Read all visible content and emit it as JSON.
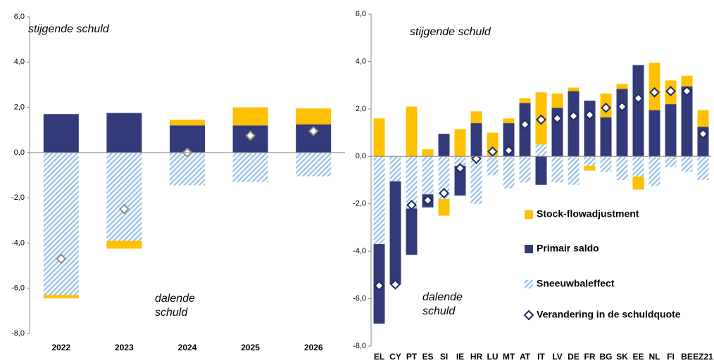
{
  "chart_data": [
    {
      "type": "bar",
      "stacked": true,
      "categories": [
        "2022",
        "2023",
        "2024",
        "2025",
        "2026"
      ],
      "series": [
        {
          "color": "#FFC000",
          "values": [
            -0.15,
            -0.35,
            0.25,
            0.8,
            0.7
          ]
        },
        {
          "color": "#333A7A",
          "values": [
            1.7,
            1.75,
            1.2,
            1.2,
            1.25
          ]
        },
        {
          "color": "#9DC3E6",
          "hatch": true,
          "values": [
            -6.3,
            -3.9,
            -1.45,
            -1.3,
            -1.05
          ]
        },
        {
          "type": "marker",
          "color": "#8C8C8C",
          "values": [
            -4.7,
            -2.5,
            0.0,
            0.75,
            0.95
          ]
        }
      ],
      "ylim": [
        -8,
        6
      ],
      "yticks": [
        {
          "value": -8,
          "label": "-8,0"
        },
        {
          "value": -6,
          "label": "-6,0"
        },
        {
          "value": -4,
          "label": "-4,0"
        },
        {
          "value": -2,
          "label": "-2,0"
        },
        {
          "value": 0,
          "label": "0,0"
        },
        {
          "value": 2,
          "label": "2,0"
        },
        {
          "value": 4,
          "label": "4,0"
        },
        {
          "value": 6,
          "label": "6,0"
        }
      ],
      "annotations": [
        {
          "lines": [
            "stijgende schuld"
          ]
        },
        {
          "lines": [
            "dalende",
            "schuld"
          ]
        }
      ],
      "legend": false
    },
    {
      "type": "bar",
      "stacked": true,
      "categories": [
        "EL",
        "CY",
        "PT",
        "ES",
        "SI",
        "IE",
        "HR",
        "LU",
        "MT",
        "AT",
        "IT",
        "LV",
        "DE",
        "FR",
        "BG",
        "SK",
        "EE",
        "NL",
        "FI",
        "BE",
        "EZ21"
      ],
      "series": [
        {
          "name": "Stock-flowadjustment",
          "color": "#FFC000",
          "values": [
            1.6,
            0,
            2.1,
            0.3,
            -0.7,
            1.15,
            0.5,
            1.0,
            0.2,
            0.2,
            2.2,
            0.6,
            0.15,
            -0.2,
            1.0,
            0.2,
            -0.55,
            2.0,
            1.0,
            0.45,
            0.7
          ]
        },
        {
          "name": "Primair saldo",
          "color": "#333A7A",
          "values": [
            -3.35,
            -4.35,
            -1.95,
            -0.55,
            0.95,
            -1.25,
            1.4,
            0,
            1.4,
            2.25,
            -1.2,
            2.05,
            2.75,
            2.35,
            1.65,
            2.85,
            3.85,
            1.95,
            2.2,
            2.95,
            1.25
          ]
        },
        {
          "name": "Sneeuwbaleffect",
          "color": "#9DC3E6",
          "hatch": true,
          "values": [
            -3.7,
            -1.05,
            -2.2,
            -1.6,
            -1.8,
            -0.4,
            -2.0,
            -0.8,
            -1.35,
            -1.1,
            0.5,
            -1.1,
            -1.2,
            -0.4,
            -0.65,
            -1.0,
            -0.85,
            -1.25,
            -0.45,
            -0.65,
            -1.0
          ]
        },
        {
          "name": "Verandering in de schuldquote",
          "type": "marker",
          "color": "#1F2A5C",
          "values": [
            -5.45,
            -5.4,
            -2.05,
            -1.85,
            -1.55,
            -0.5,
            -0.1,
            0.2,
            0.25,
            1.35,
            1.55,
            1.6,
            1.7,
            1.75,
            2.05,
            2.1,
            2.45,
            2.7,
            2.75,
            2.75,
            0.95
          ]
        }
      ],
      "ylim": [
        -8,
        6
      ],
      "yticks": [
        {
          "value": -8,
          "label": "-8,0"
        },
        {
          "value": -6,
          "label": "-6,0"
        },
        {
          "value": -4,
          "label": "-4,0"
        },
        {
          "value": -2,
          "label": "-2,0"
        },
        {
          "value": 0,
          "label": "0,0"
        },
        {
          "value": 2,
          "label": "2,0"
        },
        {
          "value": 4,
          "label": "4,0"
        },
        {
          "value": 6,
          "label": "6,0"
        }
      ],
      "annotations": [
        {
          "lines": [
            "stijgende schuld"
          ]
        },
        {
          "lines": [
            "dalende",
            "schuld"
          ]
        }
      ],
      "legend": true
    }
  ]
}
